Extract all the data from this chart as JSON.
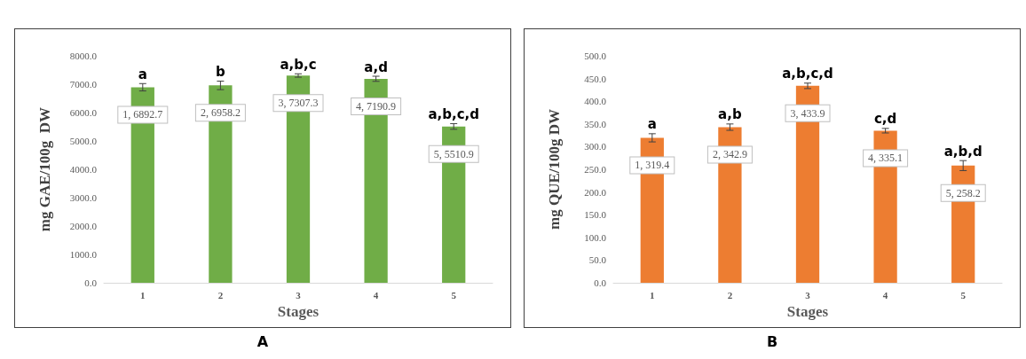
{
  "chart_data": [
    {
      "type": "bar",
      "xlabel": "Stages",
      "ylabel": "mg GAE/100g  DW",
      "categories": [
        "1",
        "2",
        "3",
        "4",
        "5"
      ],
      "values": [
        6892.7,
        6958.2,
        7307.3,
        7190.9,
        5510.9
      ],
      "color": "#70ad47",
      "errors": [
        130,
        150,
        60,
        90,
        100
      ],
      "value_labels": [
        "1, 6892.7",
        "2, 6958.2",
        "3, 7307.3",
        "4, 7190.9",
        "5, 5510.9"
      ],
      "ylim": [
        0,
        8000
      ],
      "yticks": [
        {
          "value": 0,
          "label": "0.0"
        },
        {
          "value": 1000,
          "label": "1000.0"
        },
        {
          "value": 2000,
          "label": "2000.0"
        },
        {
          "value": 3000,
          "label": "3000.0"
        },
        {
          "value": 4000,
          "label": "4000.0"
        },
        {
          "value": 5000,
          "label": "5000.0"
        },
        {
          "value": 6000,
          "label": "6000.0"
        },
        {
          "value": 7000,
          "label": "7000.0"
        },
        {
          "value": 8000,
          "label": "8000.0"
        }
      ],
      "grid": false,
      "annotations": [
        {
          "text": "a",
          "x": "1",
          "y": 7022.7
        },
        {
          "text": "b",
          "x": "2",
          "y": 7108.2
        },
        {
          "text": "a,b,c",
          "x": "3",
          "y": 7367.3
        },
        {
          "text": "a,d",
          "x": "4",
          "y": 7280.9
        },
        {
          "text": "a,b,c,d",
          "x": "5",
          "y": 5610.9
        },
        "A"
      ]
    },
    {
      "type": "bar",
      "xlabel": "Stages",
      "ylabel": "mg QUE/100g DW",
      "categories": [
        "1",
        "2",
        "3",
        "4",
        "5"
      ],
      "values": [
        319.4,
        342.9,
        433.9,
        335.1,
        258.2
      ],
      "color": "#ed7d31",
      "errors": [
        9,
        7,
        6,
        5,
        11
      ],
      "value_labels": [
        "1, 319.4",
        "2, 342.9",
        "3, 433.9",
        "4, 335.1",
        "5, 258.2"
      ],
      "ylim": [
        0,
        500
      ],
      "yticks": [
        {
          "value": 0,
          "label": "0.0"
        },
        {
          "value": 50,
          "label": "50.0"
        },
        {
          "value": 100,
          "label": "100.0"
        },
        {
          "value": 150,
          "label": "150.0"
        },
        {
          "value": 200,
          "label": "200.0"
        },
        {
          "value": 250,
          "label": "250.0"
        },
        {
          "value": 300,
          "label": "300.0"
        },
        {
          "value": 350,
          "label": "350.0"
        },
        {
          "value": 400,
          "label": "400.0"
        },
        {
          "value": 450,
          "label": "450.0"
        },
        {
          "value": 500,
          "label": "500.0"
        }
      ],
      "grid": false,
      "annotations": [
        {
          "text": "a",
          "x": "1",
          "y": 328.4
        },
        {
          "text": "a,b",
          "x": "2",
          "y": 349.9
        },
        {
          "text": "a,b,c,d",
          "x": "3",
          "y": 439.9
        },
        {
          "text": "c,d",
          "x": "4",
          "y": 340.1
        },
        {
          "text": "a,b,d",
          "x": "5",
          "y": 269.2
        },
        "B"
      ]
    }
  ]
}
